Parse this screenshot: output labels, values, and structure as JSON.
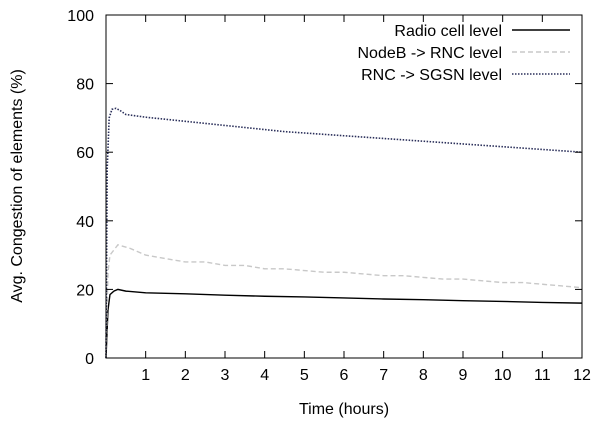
{
  "chart_data": {
    "type": "line",
    "title": "",
    "xlabel": "Time (hours)",
    "ylabel": "Avg. Congestion of elements (%)",
    "xlim": [
      0,
      12
    ],
    "ylim": [
      0,
      100
    ],
    "xticks": [
      1,
      2,
      3,
      4,
      5,
      6,
      7,
      8,
      9,
      10,
      11,
      12
    ],
    "yticks": [
      0,
      20,
      40,
      60,
      80,
      100
    ],
    "grid": false,
    "legend_position": "top-right",
    "series": [
      {
        "name": "Radio cell level",
        "color": "#000000",
        "style": "solid",
        "x": [
          0,
          0.05,
          0.1,
          0.2,
          0.3,
          0.5,
          1,
          2,
          3,
          4,
          5,
          6,
          7,
          8,
          9,
          10,
          11,
          12
        ],
        "y": [
          0,
          14,
          18.5,
          19.5,
          20,
          19.5,
          19,
          18.7,
          18.3,
          18,
          17.8,
          17.5,
          17.2,
          17,
          16.7,
          16.5,
          16.2,
          16
        ]
      },
      {
        "name": "NodeB -> RNC level",
        "color": "#c8c8c8",
        "style": "dashed",
        "x": [
          0,
          0.05,
          0.1,
          0.3,
          0.6,
          1,
          1.5,
          2,
          2.5,
          3,
          3.5,
          4,
          4.5,
          5,
          5.5,
          6,
          6.5,
          7,
          7.5,
          8,
          8.5,
          9,
          9.5,
          10,
          10.5,
          11,
          11.5,
          12
        ],
        "y": [
          0,
          25,
          30,
          33,
          32,
          30,
          29,
          28,
          28,
          27,
          27,
          26,
          26,
          25.5,
          25,
          25,
          24.5,
          24,
          24,
          23.5,
          23,
          23,
          22.5,
          22,
          22,
          21.5,
          21,
          20.5
        ]
      },
      {
        "name": "RNC -> SGSN level",
        "color": "#2a2f5a",
        "style": "dotted",
        "x": [
          0,
          0.03,
          0.08,
          0.15,
          0.25,
          0.35,
          0.5,
          0.75,
          1,
          1.5,
          2,
          2.5,
          3,
          3.5,
          4,
          4.5,
          5,
          5.5,
          6,
          6.5,
          7,
          7.5,
          8,
          8.5,
          9,
          9.5,
          10,
          10.5,
          11,
          11.5,
          12
        ],
        "y": [
          0,
          55,
          70,
          72.5,
          72.8,
          72.2,
          71,
          70.6,
          70.2,
          69.6,
          69,
          68.4,
          67.8,
          67.2,
          66.6,
          66,
          65.6,
          65.2,
          64.8,
          64.4,
          64,
          63.6,
          63.2,
          62.8,
          62.4,
          62,
          61.6,
          61.2,
          60.8,
          60.4,
          60
        ]
      }
    ]
  }
}
